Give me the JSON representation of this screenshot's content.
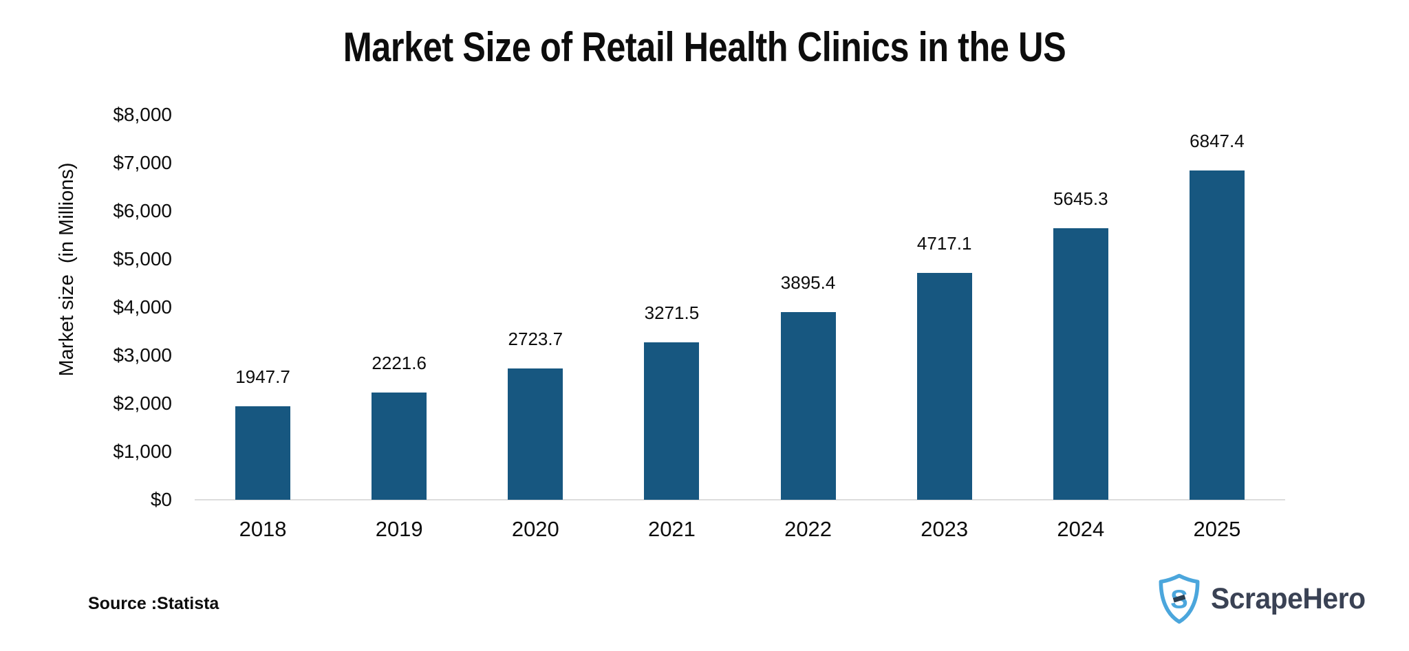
{
  "chart_data": {
    "type": "bar",
    "title": "Market Size of Retail Health Clinics in the US",
    "ylabel": "Market size  (in Millions)",
    "xlabel": "",
    "categories": [
      "2018",
      "2019",
      "2020",
      "2021",
      "2022",
      "2023",
      "2024",
      "2025"
    ],
    "values": [
      1947.7,
      2221.6,
      2723.7,
      3271.5,
      3895.4,
      4717.1,
      5645.3,
      6847.4
    ],
    "value_labels": [
      "1947.7",
      "2221.6",
      "2723.7",
      "3271.5",
      "3895.4",
      "4717.1",
      "5645.3",
      "6847.4"
    ],
    "ylim": [
      0,
      8000
    ],
    "ytick_step": 1000,
    "ytick_labels": [
      "$0",
      "$1,000",
      "$2,000",
      "$3,000",
      "$4,000",
      "$5,000",
      "$6,000",
      "$7,000",
      "$8,000"
    ],
    "bar_color": "#175780",
    "grid": false,
    "legend": false
  },
  "footer": {
    "source": "Source :Statista",
    "brand": "ScrapeHero"
  },
  "colors": {
    "bar": "#175780",
    "axis_line": "#dcdcdc",
    "logo_blue": "#4ba6dc",
    "logo_navy": "#2c3e50",
    "brand_text": "#3a4254"
  }
}
